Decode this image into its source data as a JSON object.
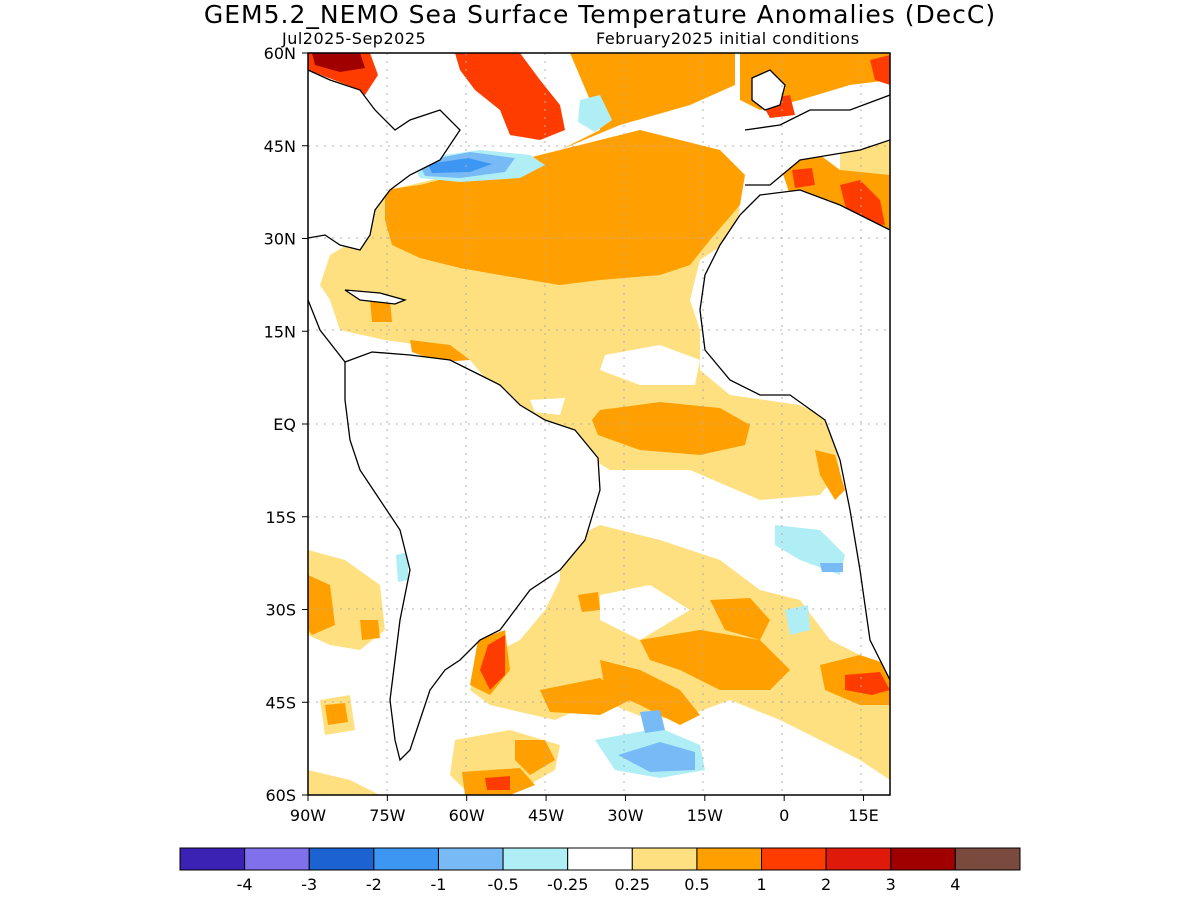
{
  "header": {
    "title": "GEM5.2_NEMO Sea Surface Temperature Anomalies (DecC)",
    "period": "Jul2025-Sep2025",
    "init": "February2025 initial conditions"
  },
  "axes": {
    "lat_labels": [
      {
        "text": "60N",
        "lat": 60
      },
      {
        "text": "45N",
        "lat": 45
      },
      {
        "text": "30N",
        "lat": 30
      },
      {
        "text": "15N",
        "lat": 15
      },
      {
        "text": "EQ",
        "lat": 0
      },
      {
        "text": "15S",
        "lat": -15
      },
      {
        "text": "30S",
        "lat": -30
      },
      {
        "text": "45S",
        "lat": -45
      },
      {
        "text": "60S",
        "lat": -60
      }
    ],
    "lon_labels": [
      {
        "text": "90W",
        "lon": -90
      },
      {
        "text": "75W",
        "lon": -75
      },
      {
        "text": "60W",
        "lon": -60
      },
      {
        "text": "45W",
        "lon": -45
      },
      {
        "text": "30W",
        "lon": -30
      },
      {
        "text": "15W",
        "lon": -15
      },
      {
        "text": "0",
        "lon": 0
      },
      {
        "text": "15E",
        "lon": 15
      }
    ],
    "lon_range": [
      -90,
      20
    ],
    "lat_range": [
      -60,
      60
    ],
    "grid": "dotted"
  },
  "colorbar": {
    "colors": [
      "#3c22b4",
      "#8070ec",
      "#1c62d0",
      "#3c96f2",
      "#78baf6",
      "#b0eef6",
      "#ffffff",
      "#ffe080",
      "#ffa000",
      "#ff3c00",
      "#e01a0a",
      "#a00000",
      "#7a4a3e"
    ],
    "labels": [
      "-4",
      "-3",
      "-2",
      "-1",
      "-0.5",
      "-0.25",
      "0.25",
      "0.5",
      "1",
      "2",
      "3",
      "4"
    ]
  }
}
